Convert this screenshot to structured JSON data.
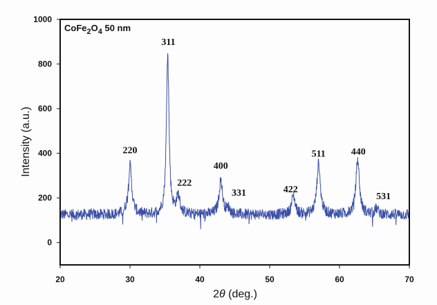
{
  "chart_data": {
    "type": "line",
    "title": "",
    "annotation_sample": "CoFe2O4 50 nm",
    "xlabel": "2θ (deg.)",
    "ylabel": "Intensity (a.u.)",
    "xlim": [
      20,
      70
    ],
    "ylim": [
      -100,
      1000
    ],
    "xticks": [
      20,
      30,
      40,
      50,
      60,
      70
    ],
    "yticks": [
      0,
      200,
      400,
      600,
      800,
      1000
    ],
    "grid": false,
    "legend": null,
    "series_color": "#3a4fa8",
    "baseline_intensity": 125,
    "noise_amplitude": 25,
    "peaks": [
      {
        "hkl": "220",
        "two_theta": 30.0,
        "intensity": 345
      },
      {
        "hkl": "311",
        "two_theta": 35.4,
        "intensity": 845
      },
      {
        "hkl": "222",
        "two_theta": 36.9,
        "intensity": 205
      },
      {
        "hkl": "400",
        "two_theta": 43.0,
        "intensity": 280
      },
      {
        "hkl": "331",
        "two_theta": 44.1,
        "intensity": 150
      },
      {
        "hkl": "422",
        "two_theta": 53.4,
        "intensity": 210
      },
      {
        "hkl": "511",
        "two_theta": 57.0,
        "intensity": 355
      },
      {
        "hkl": "440",
        "two_theta": 62.6,
        "intensity": 370
      },
      {
        "hkl": "531",
        "two_theta": 65.3,
        "intensity": 150
      }
    ],
    "peak_labels": [
      {
        "text": "220",
        "two_theta": 30.0,
        "y": 400
      },
      {
        "text": "311",
        "two_theta": 35.5,
        "y": 885
      },
      {
        "text": "222",
        "two_theta": 37.8,
        "y": 255
      },
      {
        "text": "400",
        "two_theta": 43.0,
        "y": 330
      },
      {
        "text": "331",
        "two_theta": 45.6,
        "y": 210
      },
      {
        "text": "422",
        "two_theta": 53.0,
        "y": 225
      },
      {
        "text": "511",
        "two_theta": 57.0,
        "y": 385
      },
      {
        "text": "440",
        "two_theta": 62.7,
        "y": 395
      },
      {
        "text": "531",
        "two_theta": 66.3,
        "y": 195
      }
    ]
  },
  "labels": {
    "sample_main": "CoFe",
    "sample_sub1": "2",
    "sample_mid": "O",
    "sample_sub2": "4",
    "sample_tail": " 50 nm",
    "xlabel_theta_prefix": "2",
    "xlabel_theta": "θ",
    "xlabel_unit": " (deg.)",
    "ylabel": "Intensity (a.u.)"
  }
}
